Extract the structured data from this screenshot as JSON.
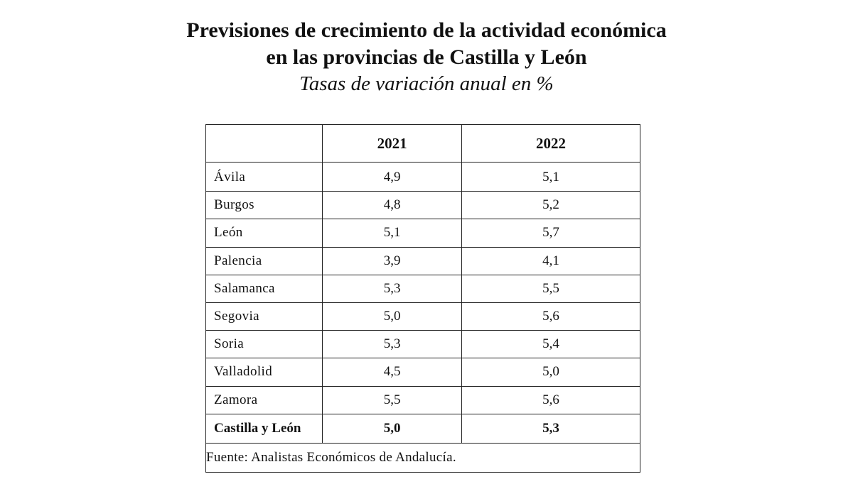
{
  "chart_data": {
    "type": "table",
    "title": "Previsiones de crecimiento de la actividad económica en las provincias de Castilla y León",
    "title_line1": "Previsiones de crecimiento de la actividad económica",
    "title_line2": "en las provincias de Castilla y León",
    "subtitle": "Tasas de variación anual en %",
    "columns": [
      "",
      "2021",
      "2022"
    ],
    "rows": [
      {
        "name": "Ávila",
        "v2021": "4,9",
        "v2022": "5,1"
      },
      {
        "name": "Burgos",
        "v2021": "4,8",
        "v2022": "5,2"
      },
      {
        "name": "León",
        "v2021": "5,1",
        "v2022": "5,7"
      },
      {
        "name": "Palencia",
        "v2021": "3,9",
        "v2022": "4,1"
      },
      {
        "name": "Salamanca",
        "v2021": "5,3",
        "v2022": "5,5"
      },
      {
        "name": "Segovia",
        "v2021": "5,0",
        "v2022": "5,6"
      },
      {
        "name": "Soria",
        "v2021": "5,3",
        "v2022": "5,4"
      },
      {
        "name": "Valladolid",
        "v2021": "4,5",
        "v2022": "5,0"
      },
      {
        "name": "Zamora",
        "v2021": "5,5",
        "v2022": "5,6"
      }
    ],
    "total": {
      "name": "Castilla y León",
      "v2021": "5,0",
      "v2022": "5,3"
    },
    "source": "Fuente: Analistas Económicos de Andalucía."
  }
}
